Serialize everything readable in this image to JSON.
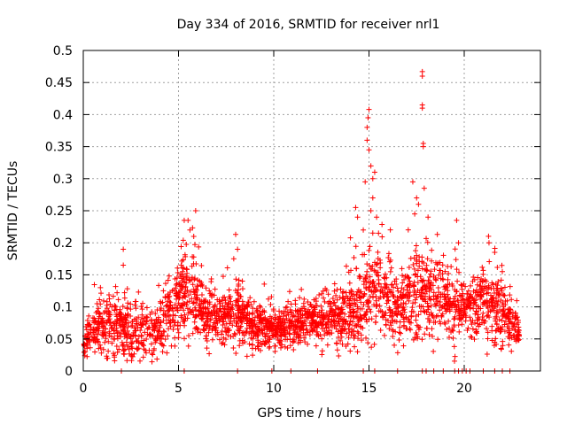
{
  "chart_data": {
    "type": "scatter",
    "title": "Day 334 of 2016, SRMTID for receiver nrl1",
    "xlabel": "GPS time / hours",
    "ylabel": "SRMTID / TECUs",
    "xlim": [
      0,
      24
    ],
    "ylim": [
      0,
      0.5
    ],
    "x_ticks": [
      "0",
      "5",
      "10",
      "15",
      "20"
    ],
    "x_tick_values": [
      0,
      5,
      10,
      15,
      20
    ],
    "y_ticks": [
      "0",
      "0.05",
      "0.1",
      "0.15",
      "0.2",
      "0.25",
      "0.3",
      "0.35",
      "0.4",
      "0.45",
      "0.5"
    ],
    "y_tick_values": [
      0,
      0.05,
      0.1,
      0.15,
      0.2,
      0.25,
      0.3,
      0.35,
      0.4,
      0.45,
      0.5
    ],
    "grid": true,
    "marker": "+",
    "series_color": "#ff0000",
    "envelope_hours": [
      0,
      0.5,
      1,
      1.5,
      2,
      2.5,
      3,
      3.5,
      4,
      4.5,
      5,
      5.5,
      6,
      6.5,
      7,
      7.5,
      8,
      8.5,
      9,
      9.5,
      10,
      10.5,
      11,
      11.5,
      12,
      12.5,
      13,
      13.5,
      14,
      14.5,
      15,
      15.5,
      16,
      16.5,
      17,
      17.5,
      18,
      18.5,
      19,
      19.5,
      20,
      20.5,
      21,
      21.5,
      22,
      22.5,
      22.9
    ],
    "envelope_median": [
      0.045,
      0.06,
      0.07,
      0.075,
      0.065,
      0.06,
      0.065,
      0.06,
      0.07,
      0.09,
      0.11,
      0.12,
      0.1,
      0.09,
      0.085,
      0.08,
      0.095,
      0.08,
      0.07,
      0.065,
      0.065,
      0.065,
      0.07,
      0.075,
      0.08,
      0.075,
      0.08,
      0.085,
      0.09,
      0.1,
      0.12,
      0.13,
      0.11,
      0.1,
      0.11,
      0.115,
      0.12,
      0.115,
      0.11,
      0.1,
      0.095,
      0.1,
      0.11,
      0.1,
      0.09,
      0.07,
      0.06
    ],
    "envelope_spread": [
      0.02,
      0.03,
      0.035,
      0.04,
      0.04,
      0.035,
      0.035,
      0.035,
      0.035,
      0.04,
      0.05,
      0.06,
      0.05,
      0.04,
      0.035,
      0.035,
      0.05,
      0.035,
      0.03,
      0.03,
      0.025,
      0.025,
      0.03,
      0.03,
      0.03,
      0.03,
      0.035,
      0.04,
      0.05,
      0.06,
      0.07,
      0.06,
      0.05,
      0.05,
      0.05,
      0.06,
      0.06,
      0.05,
      0.05,
      0.045,
      0.04,
      0.045,
      0.05,
      0.045,
      0.04,
      0.03,
      0.02
    ],
    "peak_points": [
      {
        "x": 0.1,
        "y": 0.03
      },
      {
        "x": 0.9,
        "y": 0.13
      },
      {
        "x": 2.1,
        "y": 0.19
      },
      {
        "x": 2.1,
        "y": 0.165
      },
      {
        "x": 5.3,
        "y": 0.235
      },
      {
        "x": 5.5,
        "y": 0.235
      },
      {
        "x": 5.6,
        "y": 0.22
      },
      {
        "x": 5.9,
        "y": 0.25
      },
      {
        "x": 5.8,
        "y": 0.21
      },
      {
        "x": 8.0,
        "y": 0.213
      },
      {
        "x": 8.1,
        "y": 0.19
      },
      {
        "x": 7.9,
        "y": 0.175
      },
      {
        "x": 14.3,
        "y": 0.255
      },
      {
        "x": 14.4,
        "y": 0.24
      },
      {
        "x": 14.7,
        "y": 0.22
      },
      {
        "x": 14.8,
        "y": 0.295
      },
      {
        "x": 14.9,
        "y": 0.38
      },
      {
        "x": 14.95,
        "y": 0.395
      },
      {
        "x": 15.0,
        "y": 0.408
      },
      {
        "x": 14.9,
        "y": 0.36
      },
      {
        "x": 15.0,
        "y": 0.345
      },
      {
        "x": 15.1,
        "y": 0.32
      },
      {
        "x": 15.2,
        "y": 0.3
      },
      {
        "x": 15.3,
        "y": 0.31
      },
      {
        "x": 15.2,
        "y": 0.27
      },
      {
        "x": 15.4,
        "y": 0.24
      },
      {
        "x": 15.5,
        "y": 0.215
      },
      {
        "x": 15.1,
        "y": 0.25
      },
      {
        "x": 17.3,
        "y": 0.295
      },
      {
        "x": 17.5,
        "y": 0.27
      },
      {
        "x": 17.4,
        "y": 0.245
      },
      {
        "x": 17.6,
        "y": 0.26
      },
      {
        "x": 17.8,
        "y": 0.467
      },
      {
        "x": 17.8,
        "y": 0.46
      },
      {
        "x": 17.8,
        "y": 0.415
      },
      {
        "x": 17.8,
        "y": 0.41
      },
      {
        "x": 17.85,
        "y": 0.355
      },
      {
        "x": 17.85,
        "y": 0.35
      },
      {
        "x": 17.9,
        "y": 0.285
      },
      {
        "x": 18.1,
        "y": 0.24
      },
      {
        "x": 19.6,
        "y": 0.235
      },
      {
        "x": 19.7,
        "y": 0.2
      },
      {
        "x": 21.3,
        "y": 0.2
      },
      {
        "x": 21.6,
        "y": 0.185
      },
      {
        "x": 22.0,
        "y": 0.155
      },
      {
        "x": 22.7,
        "y": 0.09
      }
    ],
    "zero_points_x": [
      2.0,
      5.3,
      8.1,
      9.9,
      10.9,
      12.3,
      14.7,
      15.3,
      16.5,
      17.8,
      18.0,
      18.4,
      18.9,
      19.5,
      19.7,
      19.9,
      20.1,
      20.3,
      21.0,
      21.6,
      22.0,
      22.4
    ],
    "n_samples": 2600,
    "random_seed": 334
  }
}
